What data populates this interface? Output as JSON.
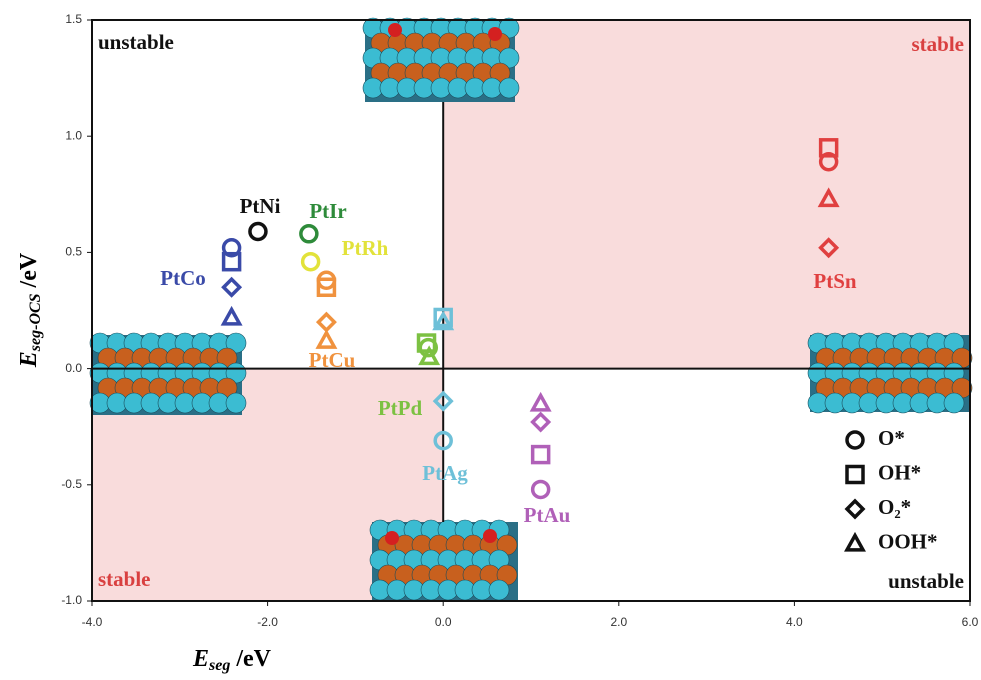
{
  "chart_data": {
    "type": "scatter",
    "xlim": [
      -4.0,
      6.0
    ],
    "ylim": [
      -1.0,
      1.5
    ],
    "xticks": [
      {
        "value": -4,
        "label": "-4.0"
      },
      {
        "value": -2,
        "label": "-2.0"
      },
      {
        "value": 0,
        "label": "0.0"
      },
      {
        "value": 2,
        "label": "2.0"
      },
      {
        "value": 4,
        "label": "4.0"
      },
      {
        "value": 6,
        "label": "6.0"
      }
    ],
    "yticks": [
      {
        "value": -1,
        "label": "-1.0"
      },
      {
        "value": -0.5,
        "label": "-0.5"
      },
      {
        "value": 0,
        "label": "0.0"
      },
      {
        "value": 0.5,
        "label": "0.5"
      },
      {
        "value": 1,
        "label": "1.0"
      },
      {
        "value": 1.5,
        "label": "1.5"
      }
    ],
    "x_label": {
      "main": "E",
      "sub": "seg",
      "unit": " /eV"
    },
    "y_label": {
      "main": "E",
      "sub": "seg-OCS",
      "unit": " /eV"
    },
    "regions": {
      "top_left": "unstable",
      "top_right": "stable",
      "bottom_left": "stable",
      "bottom_right": "unstable",
      "stable_color": "#f9dcdc"
    },
    "alloys": [
      {
        "name": "PtNi",
        "color": "#111111"
      },
      {
        "name": "PtCo",
        "color": "#3a4aa8"
      },
      {
        "name": "PtIr",
        "color": "#2e8b3a"
      },
      {
        "name": "PtRh",
        "color": "#e2e23a"
      },
      {
        "name": "PtCu",
        "color": "#f0923e"
      },
      {
        "name": "PtPd",
        "color": "#7cc142"
      },
      {
        "name": "PtAg",
        "color": "#6ec0d8"
      },
      {
        "name": "PtAu",
        "color": "#b060b8"
      },
      {
        "name": "PtSn",
        "color": "#e04040"
      }
    ],
    "series": [
      {
        "name": "O*",
        "marker": "circle",
        "x": [
          -2.11,
          -2.41,
          -1.53,
          -1.51,
          -1.33,
          -0.17,
          0.0,
          1.11,
          4.39
        ],
        "values": [
          0.59,
          0.52,
          0.58,
          0.46,
          0.38,
          0.09,
          -0.31,
          -0.52,
          0.89
        ]
      },
      {
        "name": "OH*",
        "marker": "square",
        "x": [
          null,
          -2.41,
          null,
          null,
          -1.33,
          -0.19,
          0.0,
          1.11,
          4.39
        ],
        "values": [
          null,
          0.46,
          null,
          null,
          0.35,
          0.11,
          0.22,
          -0.37,
          0.95
        ]
      },
      {
        "name": "O₂*",
        "marker": "diamond",
        "x": [
          null,
          -2.41,
          null,
          null,
          -1.33,
          null,
          0.0,
          1.11,
          4.39
        ],
        "values": [
          null,
          0.35,
          null,
          null,
          0.2,
          null,
          -0.14,
          -0.23,
          0.52
        ]
      },
      {
        "name": "OOH*",
        "marker": "triangle",
        "x": [
          null,
          -2.41,
          null,
          null,
          -1.33,
          -0.16,
          0.0,
          1.11,
          4.39
        ],
        "values": [
          null,
          0.22,
          null,
          null,
          0.12,
          0.05,
          0.2,
          -0.15,
          0.73
        ]
      }
    ]
  }
}
